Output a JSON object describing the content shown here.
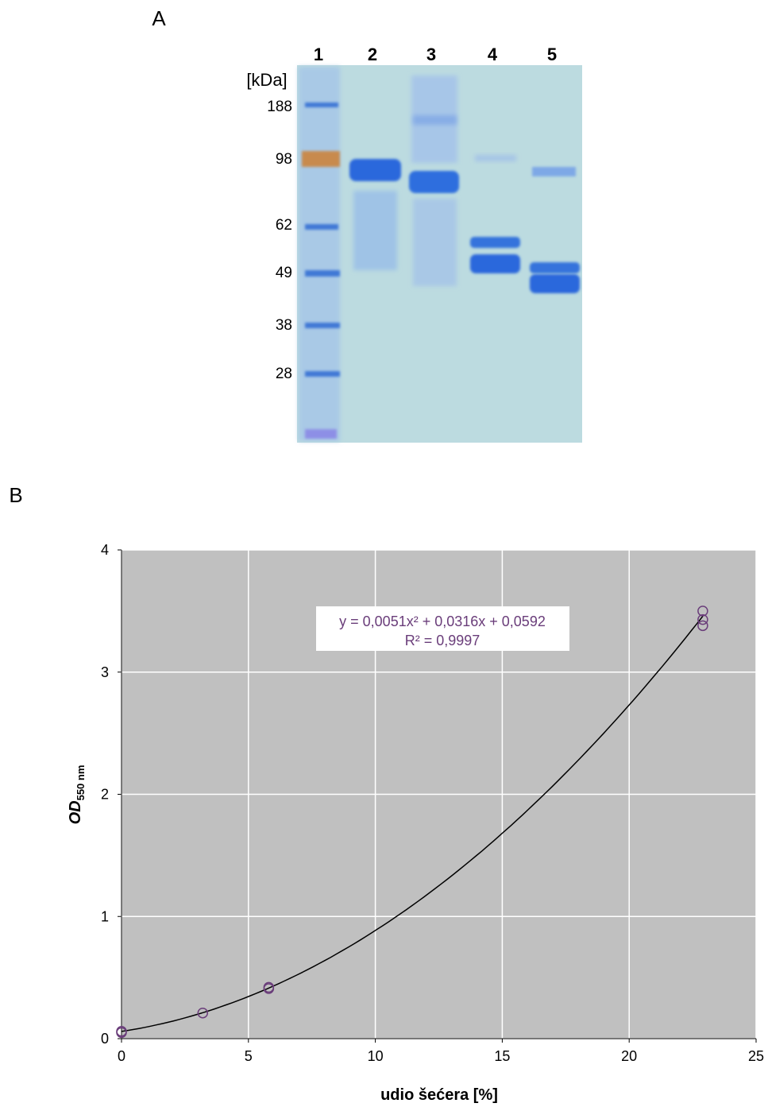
{
  "panel_a": {
    "label": "A",
    "unit": "[kDa]",
    "lanes": [
      1,
      2,
      3,
      4,
      5
    ],
    "markers": [
      188,
      98,
      62,
      49,
      38,
      28
    ]
  },
  "panel_b": {
    "label": "B"
  },
  "chart_data": {
    "type": "scatter",
    "x": [
      0,
      0,
      3.2,
      5.8,
      5.8,
      22.9,
      22.9,
      22.9
    ],
    "values": [
      0.06,
      0.05,
      0.21,
      0.41,
      0.42,
      3.5,
      3.43,
      3.38
    ],
    "marker_color": "#6a3d7a",
    "x_label": "udio šećera [%]",
    "y_label": "OD",
    "y_label_sub": "550 nm",
    "xlim": [
      0,
      25
    ],
    "xticks": [
      0,
      5,
      10,
      15,
      20,
      25
    ],
    "ylim": [
      0,
      4
    ],
    "yticks": [
      0,
      1,
      2,
      3,
      4
    ],
    "grid": true,
    "background": "#c0c0c0",
    "trendline": {
      "coefficients": [
        0.0051,
        0.0316,
        0.0592
      ],
      "color": "#000000",
      "equation": "y = 0,0051x² + 0,0316x + 0,0592",
      "r2": "R² = 0,9997",
      "label_color": "#6a3d7a"
    }
  }
}
